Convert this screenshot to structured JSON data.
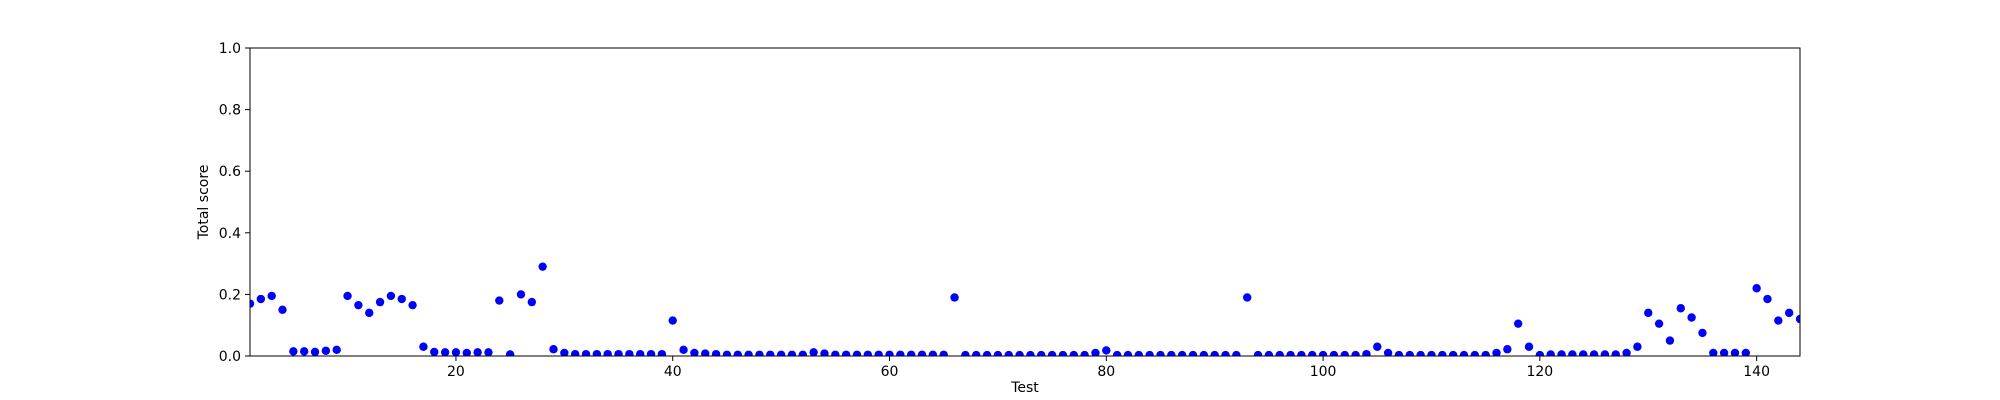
{
  "chart_data": {
    "type": "scatter",
    "xlabel": "Test",
    "ylabel": "Total score",
    "color": "blue",
    "x": [
      1,
      2,
      3,
      4,
      5,
      6,
      7,
      8,
      9,
      10,
      11,
      12,
      13,
      14,
      15,
      16,
      17,
      18,
      19,
      20,
      21,
      22,
      23,
      24,
      25,
      26,
      27,
      28,
      29,
      30,
      31,
      32,
      33,
      34,
      35,
      36,
      37,
      38,
      39,
      40,
      41,
      42,
      43,
      44,
      45,
      46,
      47,
      48,
      49,
      50,
      51,
      52,
      53,
      54,
      55,
      56,
      57,
      58,
      59,
      60,
      61,
      62,
      63,
      64,
      65,
      66,
      67,
      68,
      69,
      70,
      71,
      72,
      73,
      74,
      75,
      76,
      77,
      78,
      79,
      80,
      81,
      82,
      83,
      84,
      85,
      86,
      87,
      88,
      89,
      90,
      91,
      92,
      93,
      94,
      95,
      96,
      97,
      98,
      99,
      100,
      101,
      102,
      103,
      104,
      105,
      106,
      107,
      108,
      109,
      110,
      111,
      112,
      113,
      114,
      115,
      116,
      117,
      118,
      119,
      120,
      121,
      122,
      123,
      124,
      125,
      126,
      127,
      128,
      129,
      130,
      131,
      132,
      133,
      134,
      135,
      136,
      137,
      138,
      139,
      140,
      141,
      142,
      143,
      144
    ],
    "values": [
      0.17,
      0.185,
      0.195,
      0.15,
      0.015,
      0.015,
      0.013,
      0.017,
      0.02,
      0.195,
      0.165,
      0.14,
      0.175,
      0.195,
      0.185,
      0.165,
      0.03,
      0.013,
      0.012,
      0.012,
      0.01,
      0.012,
      0.012,
      0.18,
      0.005,
      0.2,
      0.175,
      0.29,
      0.022,
      0.01,
      0.006,
      0.006,
      0.006,
      0.006,
      0.006,
      0.006,
      0.006,
      0.006,
      0.006,
      0.115,
      0.02,
      0.01,
      0.008,
      0.006,
      0.004,
      0.004,
      0.004,
      0.004,
      0.004,
      0.004,
      0.004,
      0.004,
      0.012,
      0.008,
      0.004,
      0.004,
      0.004,
      0.004,
      0.004,
      0.004,
      0.004,
      0.004,
      0.004,
      0.004,
      0.004,
      0.19,
      0.003,
      0.003,
      0.003,
      0.003,
      0.003,
      0.003,
      0.003,
      0.003,
      0.003,
      0.003,
      0.003,
      0.003,
      0.01,
      0.018,
      0.003,
      0.003,
      0.003,
      0.003,
      0.003,
      0.003,
      0.003,
      0.003,
      0.003,
      0.003,
      0.003,
      0.003,
      0.19,
      0.003,
      0.003,
      0.003,
      0.003,
      0.003,
      0.003,
      0.003,
      0.003,
      0.003,
      0.003,
      0.006,
      0.03,
      0.01,
      0.003,
      0.003,
      0.003,
      0.003,
      0.003,
      0.003,
      0.003,
      0.003,
      0.003,
      0.01,
      0.022,
      0.105,
      0.03,
      0.003,
      0.005,
      0.005,
      0.005,
      0.005,
      0.005,
      0.005,
      0.005,
      0.01,
      0.03,
      0.14,
      0.105,
      0.05,
      0.155,
      0.125,
      0.075,
      0.01,
      0.01,
      0.01,
      0.01,
      0.22,
      0.185,
      0.115,
      0.14,
      0.12
    ],
    "xlim": [
      1,
      144
    ],
    "xticks": [
      20,
      40,
      60,
      80,
      100,
      120,
      140
    ],
    "ylim": [
      0,
      1
    ],
    "yticks": [
      {
        "value": 0,
        "label": "0.0"
      },
      {
        "value": 0.2,
        "label": "0.2"
      },
      {
        "value": 0.4,
        "label": "0.4"
      },
      {
        "value": 0.6,
        "label": "0.6"
      },
      {
        "value": 0.8,
        "label": "0.8"
      },
      {
        "value": 1,
        "label": "1.0"
      }
    ]
  }
}
